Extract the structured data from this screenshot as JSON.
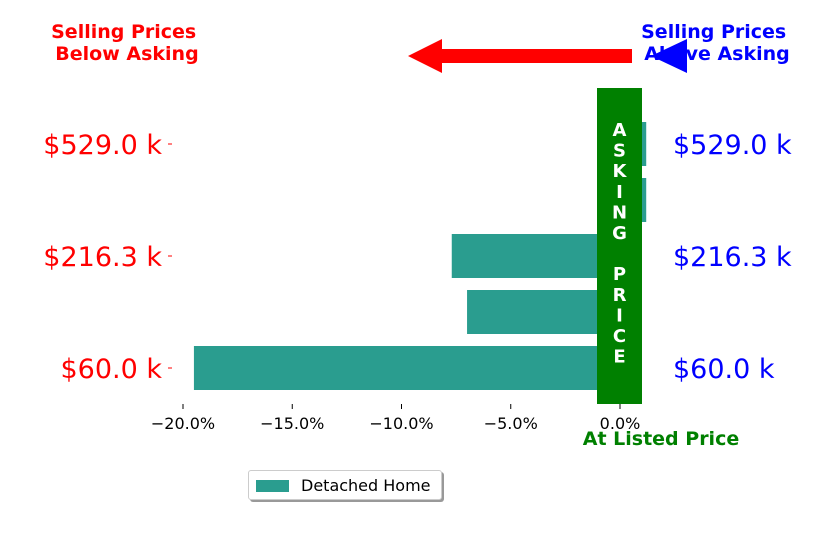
{
  "chart_data": {
    "type": "bar",
    "orientation": "horizontal",
    "categories": [
      "$60.0 k",
      "",
      "$216.3 k",
      "",
      "$529.0 k"
    ],
    "left_tick_labels": [
      "$60.0 k",
      "$216.3 k",
      "$529.0 k"
    ],
    "right_tick_labels": [
      "$60.0 k",
      "$216.3 k",
      "$529.0 k"
    ],
    "series": [
      {
        "name": "Detached Home",
        "values": [
          -19.5,
          -7.0,
          -7.7,
          1.2,
          1.2
        ]
      }
    ],
    "x_ticks": [
      "−20.0%",
      "−15.0%",
      "−10.0%",
      "−5.0%",
      "0.0%"
    ],
    "x_tick_values": [
      -20,
      -15,
      -10,
      -5,
      0
    ],
    "xlim": [
      -21.0,
      2.0
    ],
    "annotations": {
      "below_asking": "Selling Prices\nBelow Asking",
      "above_asking": "Selling Prices\nAbove Asking",
      "asking_price_letters": [
        "A",
        "S",
        "K",
        "I",
        "N",
        "G",
        "",
        "P",
        "R",
        "I",
        "C",
        "E"
      ],
      "at_listed_price": "At Listed Price"
    },
    "legend": {
      "placement": "lower-center",
      "entries": [
        "Detached Home"
      ]
    },
    "grid": false,
    "colors": {
      "bar": "#2a9d8f",
      "asking_band": "#008000",
      "below_text": "#ff0000",
      "above_text": "#0000ff",
      "arrow_red": "#ff0000",
      "arrow_blue": "#0000ff",
      "listed_text": "#008000"
    }
  }
}
